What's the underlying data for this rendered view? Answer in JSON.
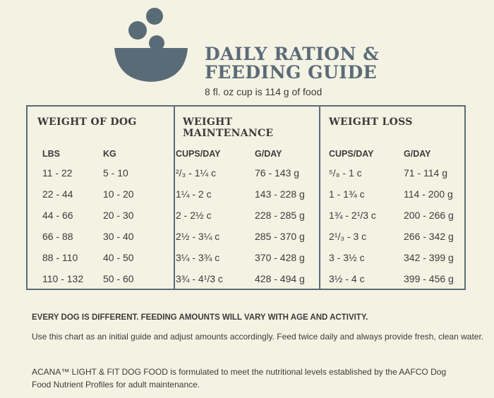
{
  "title": {
    "line1": "DAILY RATION &",
    "line2": "FEEDING GUIDE",
    "subtitle": "8 fl. oz cup is 114 g of food"
  },
  "colors": {
    "accent": "#5a6b78",
    "background": "#f4f2e3",
    "text": "#3b3b3b"
  },
  "logo_icon": "bowl-with-food-icon",
  "table": {
    "groups": {
      "weight_of_dog": "WEIGHT OF DOG",
      "maintenance_line1": "WEIGHT",
      "maintenance_line2": "MAINTENANCE",
      "weight_loss": "WEIGHT LOSS"
    },
    "columns": [
      "LBS",
      "KG",
      "CUPS/DAY",
      "G/DAY",
      "CUPS/DAY",
      "G/DAY"
    ],
    "rows": [
      [
        "11 - 22",
        "5 - 10",
        "²/₃ - 1¼ c",
        "76 - 143 g",
        "⁵/₈ - 1 c",
        "71 - 114 g"
      ],
      [
        "22 - 44",
        "10 - 20",
        "1¼ - 2 c",
        "143 - 228 g",
        "1 - 1¾ c",
        "114 - 200 g"
      ],
      [
        "44 - 66",
        "20 - 30",
        "2 - 2½ c",
        "228 - 285 g",
        "1¾ - 2¹/3 c",
        "200 - 266 g"
      ],
      [
        "66 - 88",
        "30 - 40",
        "2½ - 3¼ c",
        "285 - 370 g",
        "2¹/₃ - 3 c",
        "266 - 342 g"
      ],
      [
        "88 - 110",
        "40 - 50",
        "3¼ - 3¾ c",
        "370 - 428 g",
        "3 - 3½ c",
        "342 - 399 g"
      ],
      [
        "110 - 132",
        "50 - 60",
        "3¾ - 4¹/3 c",
        "428 - 494 g",
        "3½ - 4 c",
        "399 - 456 g"
      ]
    ]
  },
  "notes": {
    "bold": "EVERY DOG IS DIFFERENT. FEEDING AMOUNTS WILL VARY WITH AGE AND ACTIVITY.",
    "guide": "Use this chart as an initial guide and adjust amounts accordingly. Feed twice daily and always provide fresh, clean water.",
    "formulation": "ACANA™ LIGHT & FIT DOG FOOD is formulated to meet the nutritional levels established by the AAFCO Dog Food Nutrient Profiles for adult maintenance."
  }
}
